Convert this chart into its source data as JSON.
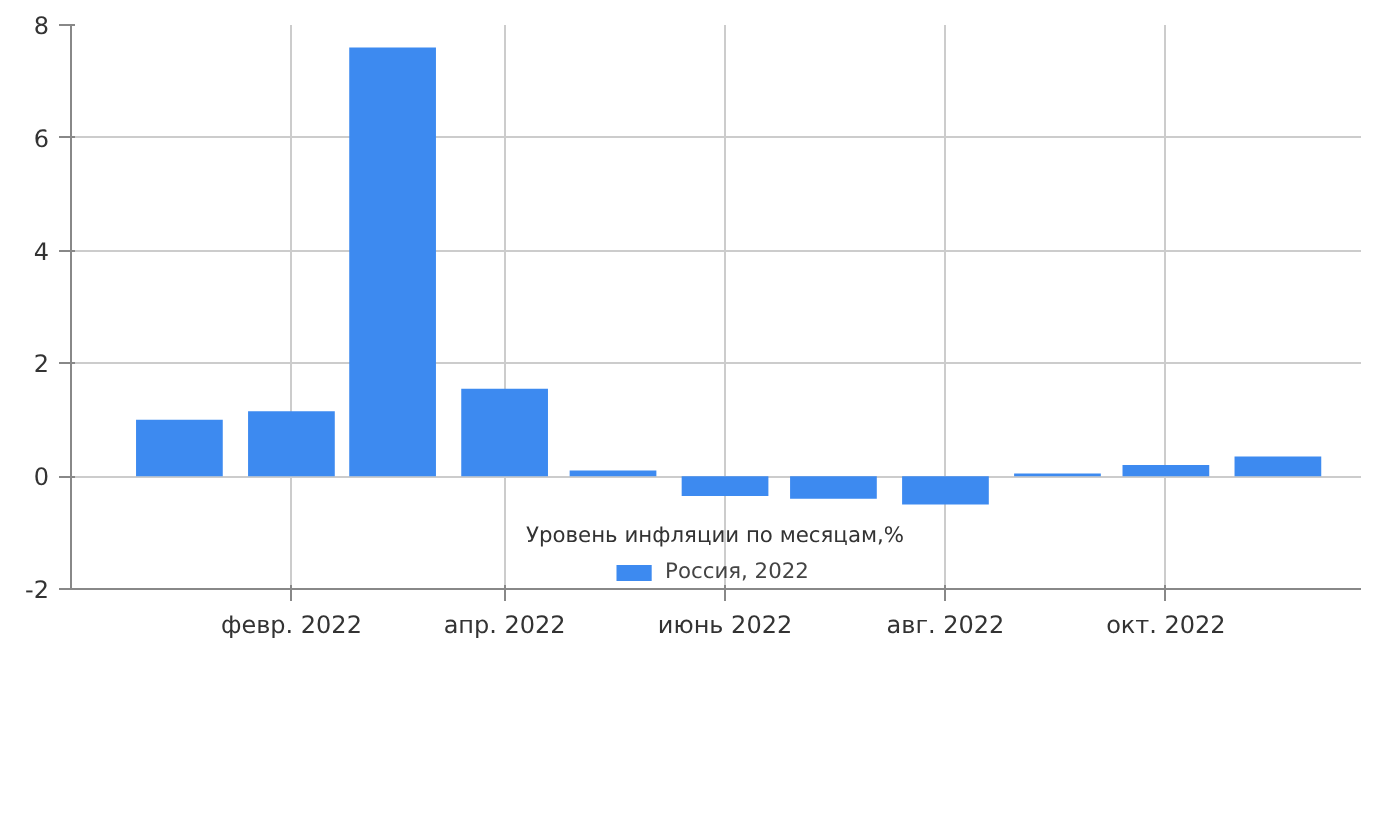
{
  "chart_data": {
    "type": "bar",
    "x": [
      "2022-01",
      "2022-02",
      "2022-03",
      "2022-04",
      "2022-05",
      "2022-06",
      "2022-07",
      "2022-08",
      "2022-09",
      "2022-10",
      "2022-11"
    ],
    "series": [
      {
        "name": "Россия, 2022",
        "color": "#3d8af0",
        "values": [
          1.0,
          1.15,
          7.6,
          1.55,
          0.1,
          -0.35,
          -0.4,
          -0.5,
          0.05,
          0.2,
          0.35
        ]
      }
    ],
    "xlim": [
      "2021-12-02",
      "2022-11-24"
    ],
    "xticks": [
      {
        "value": "2022-02",
        "label": "февр. 2022"
      },
      {
        "value": "2022-04",
        "label": "апр. 2022"
      },
      {
        "value": "2022-06",
        "label": "июнь 2022"
      },
      {
        "value": "2022-08",
        "label": "авг. 2022"
      },
      {
        "value": "2022-10",
        "label": "окт. 2022"
      }
    ],
    "ylim": [
      -2,
      8
    ],
    "yticks": [
      -2,
      0,
      2,
      4,
      6,
      8
    ],
    "grid": true,
    "legend": "bottom",
    "annotations": [
      "Уровень инфляции по месяцам,%"
    ]
  }
}
